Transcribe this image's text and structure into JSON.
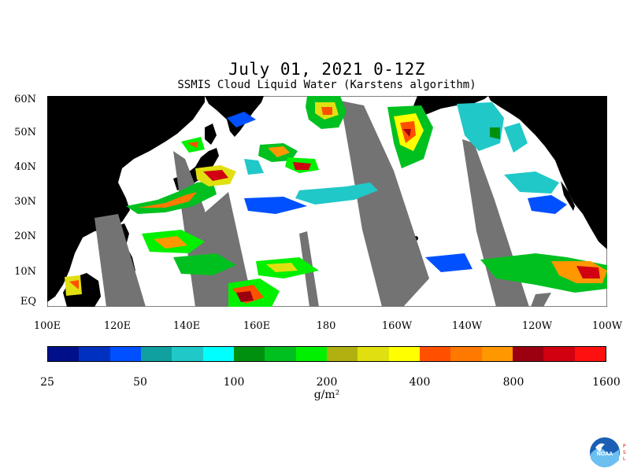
{
  "title": "July 01, 2021 0-12Z",
  "subtitle": "SSMIS Cloud Liquid Water (Karstens algorithm)",
  "lat_labels": [
    "60N",
    "50N",
    "40N",
    "30N",
    "20N",
    "10N",
    "EQ"
  ],
  "lon_labels": [
    "100E",
    "120E",
    "140E",
    "160E",
    "180",
    "160W",
    "140W",
    "120W",
    "100W"
  ],
  "colorbar": {
    "colors": [
      "#00108a",
      "#0030c0",
      "#0050ff",
      "#10a0a0",
      "#20c8c8",
      "#00ffff",
      "#009010",
      "#00c020",
      "#00f000",
      "#b0b010",
      "#e0e010",
      "#ffff00",
      "#ff5000",
      "#ff7800",
      "#ff9800",
      "#9c0010",
      "#d00010",
      "#ff1010"
    ],
    "tick_labels": [
      "25",
      "50",
      "100",
      "200",
      "400",
      "800",
      "1600"
    ],
    "unit": "g/m²"
  },
  "colors": {
    "land": "#000000",
    "no_data": "#737373",
    "background": "#ffffff"
  },
  "logo": {
    "icon": "noaa-logo",
    "text": "NOAA",
    "side_text": "PSL"
  }
}
